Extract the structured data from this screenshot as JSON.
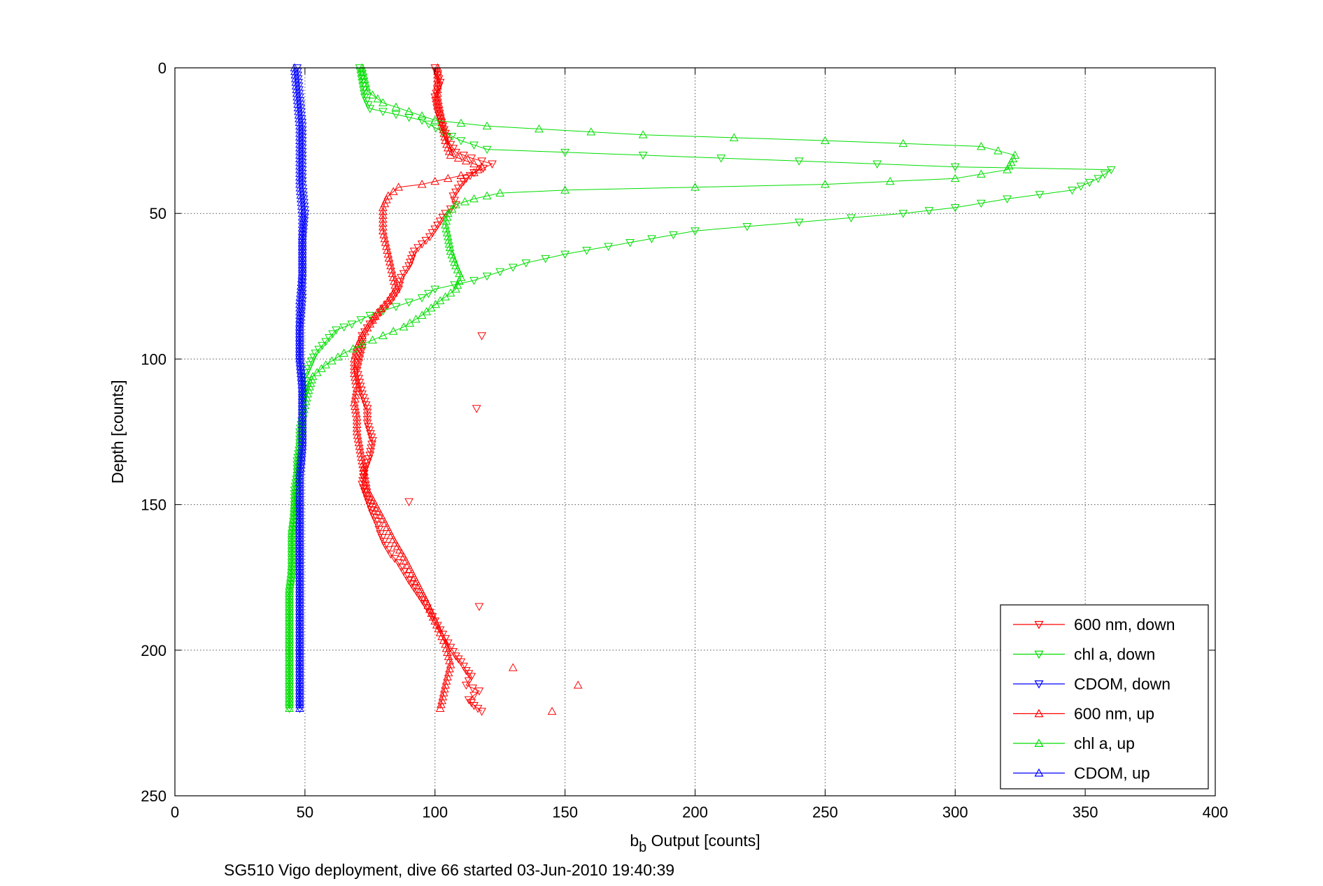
{
  "chart_data": {
    "type": "scatter",
    "xlabel": {
      "main": "b",
      "sub": "b",
      "rest": " Output [counts]"
    },
    "ylabel": "Depth [counts]",
    "footer": "SG510 Vigo deployment, dive 66 started 03-Jun-2010 19:40:39",
    "xlim": [
      0,
      400
    ],
    "ylim": [
      0,
      250
    ],
    "y_reversed": true,
    "grid": true,
    "legend_position": "bottom-right",
    "x_ticks": [
      "0",
      "50",
      "100",
      "150",
      "200",
      "250",
      "300",
      "350",
      "400"
    ],
    "y_ticks": [
      "0",
      "50",
      "100",
      "150",
      "200",
      "250"
    ],
    "series": [
      {
        "name": "600 nm, down",
        "color": "#ff0000",
        "marker": "triangle-down",
        "points": [
          [
            100,
            0
          ],
          [
            102,
            5
          ],
          [
            100,
            10
          ],
          [
            101,
            15
          ],
          [
            103,
            20
          ],
          [
            105,
            25
          ],
          [
            108,
            29
          ],
          [
            114,
            31
          ],
          [
            122,
            33
          ],
          [
            115,
            36
          ],
          [
            112,
            38
          ],
          [
            110,
            40
          ],
          [
            107,
            44
          ],
          [
            108,
            47
          ],
          [
            104,
            50
          ],
          [
            101,
            54
          ],
          [
            98,
            58
          ],
          [
            92,
            63
          ],
          [
            90,
            68
          ],
          [
            87,
            72
          ],
          [
            86,
            76
          ],
          [
            83,
            80
          ],
          [
            79,
            84
          ],
          [
            75,
            88
          ],
          [
            72,
            92
          ],
          [
            72,
            96
          ],
          [
            71,
            100
          ],
          [
            70,
            104
          ],
          [
            71,
            108
          ],
          [
            72,
            112
          ],
          [
            74,
            117
          ],
          [
            74,
            122
          ],
          [
            76,
            128
          ],
          [
            75,
            133
          ],
          [
            73,
            138
          ],
          [
            72,
            143
          ],
          [
            74,
            148
          ],
          [
            76,
            153
          ],
          [
            78,
            157
          ],
          [
            79,
            160
          ],
          [
            81,
            164
          ],
          [
            83,
            167
          ],
          [
            86,
            170
          ],
          [
            88,
            173
          ],
          [
            90,
            176
          ],
          [
            93,
            180
          ],
          [
            96,
            184
          ],
          [
            98,
            187
          ],
          [
            100,
            190
          ],
          [
            102,
            193
          ],
          [
            104,
            196
          ],
          [
            106,
            199
          ],
          [
            108,
            202
          ],
          [
            110,
            204
          ],
          [
            112,
            207
          ],
          [
            114,
            209
          ],
          [
            112,
            212
          ],
          [
            117,
            214
          ],
          [
            113,
            217
          ],
          [
            115,
            219
          ],
          [
            118,
            221
          ]
        ],
        "spikes_x": []
      },
      {
        "name": "chl a, down",
        "color": "#00dd00",
        "marker": "triangle-down",
        "points": [
          [
            71,
            0
          ],
          [
            72,
            5
          ],
          [
            73,
            10
          ],
          [
            75,
            14
          ],
          [
            85,
            16
          ],
          [
            95,
            18
          ],
          [
            103,
            22
          ],
          [
            110,
            25
          ],
          [
            120,
            28
          ],
          [
            180,
            30
          ],
          [
            240,
            32
          ],
          [
            300,
            34
          ],
          [
            360,
            35
          ],
          [
            355,
            38
          ],
          [
            345,
            42
          ],
          [
            320,
            45
          ],
          [
            300,
            48
          ],
          [
            280,
            50
          ],
          [
            240,
            53
          ],
          [
            200,
            56
          ],
          [
            175,
            60
          ],
          [
            150,
            64
          ],
          [
            135,
            67
          ],
          [
            125,
            70
          ],
          [
            115,
            73
          ],
          [
            100,
            76
          ],
          [
            95,
            79
          ],
          [
            85,
            82
          ],
          [
            75,
            85
          ],
          [
            68,
            88
          ],
          [
            62,
            90
          ],
          [
            58,
            94
          ],
          [
            54,
            98
          ],
          [
            52,
            102
          ],
          [
            50,
            106
          ],
          [
            50,
            110
          ],
          [
            49,
            115
          ],
          [
            49,
            120
          ],
          [
            48,
            125
          ],
          [
            48,
            130
          ],
          [
            47,
            135
          ],
          [
            47,
            140
          ],
          [
            46,
            145
          ],
          [
            46,
            150
          ],
          [
            46,
            155
          ],
          [
            45,
            160
          ],
          [
            45,
            165
          ],
          [
            45,
            170
          ],
          [
            45,
            175
          ],
          [
            44,
            180
          ],
          [
            44,
            185
          ],
          [
            44,
            190
          ],
          [
            44,
            195
          ],
          [
            44,
            200
          ],
          [
            44,
            205
          ],
          [
            44,
            210
          ],
          [
            44,
            215
          ],
          [
            44,
            220
          ]
        ]
      },
      {
        "name": "CDOM, down",
        "color": "#0000ff",
        "marker": "triangle-down",
        "points": [
          [
            47,
            0
          ],
          [
            48,
            10
          ],
          [
            49,
            20
          ],
          [
            49,
            30
          ],
          [
            49,
            40
          ],
          [
            50,
            50
          ],
          [
            49,
            60
          ],
          [
            49,
            70
          ],
          [
            49,
            80
          ],
          [
            48,
            90
          ],
          [
            48,
            100
          ],
          [
            49,
            110
          ],
          [
            49,
            120
          ],
          [
            49,
            130
          ],
          [
            48,
            140
          ],
          [
            48,
            150
          ],
          [
            48,
            160
          ],
          [
            48,
            170
          ],
          [
            48,
            180
          ],
          [
            48,
            190
          ],
          [
            48,
            200
          ],
          [
            48,
            210
          ],
          [
            48,
            220
          ]
        ]
      },
      {
        "name": "600 nm, up",
        "color": "#ff0000",
        "marker": "triangle-up",
        "points": [
          [
            102,
            220
          ],
          [
            104,
            212
          ],
          [
            106,
            205
          ],
          [
            104,
            198
          ],
          [
            100,
            190
          ],
          [
            96,
            182
          ],
          [
            92,
            175
          ],
          [
            88,
            168
          ],
          [
            84,
            162
          ],
          [
            80,
            155
          ],
          [
            77,
            150
          ],
          [
            74,
            145
          ],
          [
            73,
            140
          ],
          [
            72,
            135
          ],
          [
            71,
            130
          ],
          [
            70,
            125
          ],
          [
            70,
            120
          ],
          [
            69,
            115
          ],
          [
            70,
            110
          ],
          [
            69,
            105
          ],
          [
            69,
            100
          ],
          [
            70,
            96
          ],
          [
            72,
            92
          ],
          [
            75,
            88
          ],
          [
            78,
            84
          ],
          [
            82,
            80
          ],
          [
            85,
            76
          ],
          [
            84,
            72
          ],
          [
            83,
            68
          ],
          [
            82,
            64
          ],
          [
            81,
            60
          ],
          [
            80,
            56
          ],
          [
            80,
            52
          ],
          [
            80,
            48
          ],
          [
            82,
            44
          ],
          [
            86,
            41
          ],
          [
            95,
            40
          ],
          [
            105,
            38
          ],
          [
            115,
            36
          ],
          [
            118,
            34
          ],
          [
            112,
            32
          ],
          [
            106,
            30
          ],
          [
            104,
            25
          ],
          [
            103,
            20
          ],
          [
            102,
            15
          ],
          [
            101,
            10
          ],
          [
            101,
            5
          ],
          [
            101,
            0
          ]
        ]
      },
      {
        "name": "chl a, up",
        "color": "#00dd00",
        "marker": "triangle-up",
        "points": [
          [
            44,
            220
          ],
          [
            44,
            210
          ],
          [
            44,
            200
          ],
          [
            44,
            190
          ],
          [
            44,
            180
          ],
          [
            45,
            170
          ],
          [
            45,
            160
          ],
          [
            46,
            150
          ],
          [
            47,
            140
          ],
          [
            48,
            130
          ],
          [
            49,
            120
          ],
          [
            51,
            112
          ],
          [
            53,
            106
          ],
          [
            58,
            102
          ],
          [
            65,
            98
          ],
          [
            72,
            95
          ],
          [
            80,
            92
          ],
          [
            88,
            89
          ],
          [
            95,
            85
          ],
          [
            102,
            80
          ],
          [
            108,
            76
          ],
          [
            110,
            72
          ],
          [
            108,
            68
          ],
          [
            106,
            63
          ],
          [
            105,
            58
          ],
          [
            104,
            54
          ],
          [
            105,
            50
          ],
          [
            108,
            47
          ],
          [
            115,
            45
          ],
          [
            125,
            43
          ],
          [
            150,
            42
          ],
          [
            200,
            41
          ],
          [
            250,
            40
          ],
          [
            300,
            38
          ],
          [
            320,
            35
          ],
          [
            323,
            30
          ],
          [
            310,
            27
          ],
          [
            250,
            25
          ],
          [
            180,
            23
          ],
          [
            140,
            21
          ],
          [
            120,
            20
          ],
          [
            100,
            18
          ],
          [
            90,
            15
          ],
          [
            80,
            12
          ],
          [
            74,
            8
          ],
          [
            73,
            4
          ],
          [
            72,
            0
          ]
        ]
      },
      {
        "name": "CDOM, up",
        "color": "#0000ff",
        "marker": "triangle-up",
        "points": [
          [
            48,
            220
          ],
          [
            48,
            210
          ],
          [
            48,
            200
          ],
          [
            48,
            190
          ],
          [
            48,
            180
          ],
          [
            48,
            170
          ],
          [
            48,
            160
          ],
          [
            48,
            150
          ],
          [
            48,
            140
          ],
          [
            49,
            130
          ],
          [
            49,
            120
          ],
          [
            49,
            110
          ],
          [
            48,
            100
          ],
          [
            48,
            90
          ],
          [
            48,
            80
          ],
          [
            49,
            70
          ],
          [
            49,
            60
          ],
          [
            49,
            50
          ],
          [
            48,
            40
          ],
          [
            48,
            30
          ],
          [
            48,
            20
          ],
          [
            47,
            10
          ],
          [
            46,
            0
          ]
        ]
      }
    ],
    "outliers": [
      {
        "series": "600 nm, down",
        "x": 118,
        "y": 92
      },
      {
        "series": "600 nm, down",
        "x": 116,
        "y": 117
      },
      {
        "series": "600 nm, down",
        "x": 90,
        "y": 149
      },
      {
        "series": "600 nm, down",
        "x": 117,
        "y": 185
      },
      {
        "series": "600 nm, up",
        "x": 155,
        "y": 212
      },
      {
        "series": "600 nm, up",
        "x": 145,
        "y": 221
      },
      {
        "series": "600 nm, up",
        "x": 130,
        "y": 206
      }
    ]
  }
}
